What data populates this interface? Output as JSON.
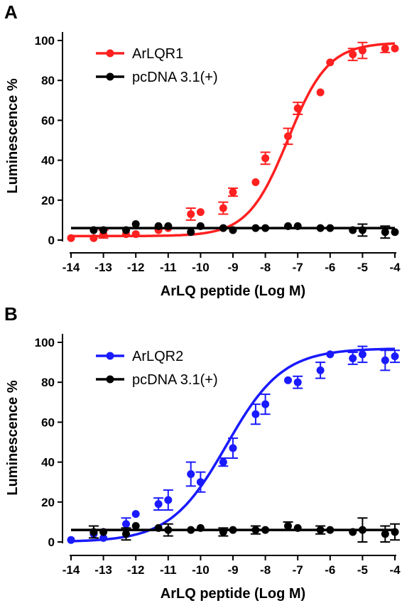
{
  "chart_data": [
    {
      "type": "scatter",
      "panel_label": "A",
      "xlabel": "ArLQ peptide (Log M)",
      "ylabel": "Luminescence %",
      "xlim": [
        -14,
        -4
      ],
      "ylim": [
        0,
        100
      ],
      "x_ticks": [
        "-14",
        "-13",
        "-12",
        "-11",
        "-10",
        "-9",
        "-8",
        "-7",
        "-6",
        "-5",
        "-4"
      ],
      "y_ticks": [
        "0",
        "20",
        "40",
        "60",
        "80",
        "100"
      ],
      "legend_position": "top-left",
      "series": [
        {
          "name": "ArLQR1",
          "color": "#ff2020",
          "fit": {
            "bottom": 2,
            "top": 99,
            "logEC50": -7.3,
            "hill": 0.7
          },
          "points": [
            {
              "x": -14.0,
              "y": 1,
              "err": 0
            },
            {
              "x": -13.3,
              "y": 1,
              "err": 0
            },
            {
              "x": -13.0,
              "y": 3,
              "err": 2
            },
            {
              "x": -12.3,
              "y": 3,
              "err": 0
            },
            {
              "x": -12.0,
              "y": 3,
              "err": 0
            },
            {
              "x": -11.3,
              "y": 5,
              "err": 0
            },
            {
              "x": -11.0,
              "y": 6,
              "err": 0
            },
            {
              "x": -10.3,
              "y": 13,
              "err": 3
            },
            {
              "x": -10.0,
              "y": 14,
              "err": 0
            },
            {
              "x": -9.3,
              "y": 16,
              "err": 3
            },
            {
              "x": -9.0,
              "y": 24,
              "err": 2
            },
            {
              "x": -8.3,
              "y": 29,
              "err": 0
            },
            {
              "x": -8.0,
              "y": 41,
              "err": 3
            },
            {
              "x": -7.3,
              "y": 52,
              "err": 4
            },
            {
              "x": -7.0,
              "y": 66,
              "err": 3
            },
            {
              "x": -6.3,
              "y": 74,
              "err": 0
            },
            {
              "x": -6.0,
              "y": 89,
              "err": 0
            },
            {
              "x": -5.3,
              "y": 93,
              "err": 3
            },
            {
              "x": -5.0,
              "y": 95,
              "err": 4
            },
            {
              "x": -4.3,
              "y": 96,
              "err": 2
            },
            {
              "x": -4.0,
              "y": 96,
              "err": 0
            }
          ]
        },
        {
          "name": "pcDNA 3.1(+)",
          "color": "#000000",
          "fit": {
            "bottom": 6,
            "top": 6,
            "logEC50": -7,
            "hill": 1
          },
          "points": [
            {
              "x": -13.3,
              "y": 5,
              "err": 0
            },
            {
              "x": -13.0,
              "y": 5,
              "err": 0
            },
            {
              "x": -12.3,
              "y": 5,
              "err": 0
            },
            {
              "x": -12.0,
              "y": 8,
              "err": 0
            },
            {
              "x": -11.3,
              "y": 7,
              "err": 0
            },
            {
              "x": -11.0,
              "y": 7,
              "err": 0
            },
            {
              "x": -10.3,
              "y": 4,
              "err": 0
            },
            {
              "x": -10.0,
              "y": 7,
              "err": 0
            },
            {
              "x": -9.3,
              "y": 6,
              "err": 0
            },
            {
              "x": -9.0,
              "y": 5,
              "err": 0
            },
            {
              "x": -8.3,
              "y": 6,
              "err": 0
            },
            {
              "x": -8.0,
              "y": 6,
              "err": 0
            },
            {
              "x": -7.3,
              "y": 7,
              "err": 0
            },
            {
              "x": -7.0,
              "y": 7,
              "err": 0
            },
            {
              "x": -6.3,
              "y": 6,
              "err": 0
            },
            {
              "x": -6.0,
              "y": 6,
              "err": 0
            },
            {
              "x": -5.3,
              "y": 5,
              "err": 0
            },
            {
              "x": -5.0,
              "y": 5,
              "err": 3
            },
            {
              "x": -4.3,
              "y": 4,
              "err": 3
            },
            {
              "x": -4.0,
              "y": 4,
              "err": 0
            }
          ]
        }
      ]
    },
    {
      "type": "scatter",
      "panel_label": "B",
      "xlabel": "ArLQ peptide (Log M)",
      "ylabel": "Luminescence %",
      "xlim": [
        -14,
        -4
      ],
      "ylim": [
        0,
        100
      ],
      "x_ticks": [
        "-14",
        "-13",
        "-12",
        "-11",
        "-10",
        "-9",
        "-8",
        "-7",
        "-6",
        "-5",
        "-4"
      ],
      "y_ticks": [
        "0",
        "20",
        "40",
        "60",
        "80",
        "100"
      ],
      "legend_position": "top-left",
      "series": [
        {
          "name": "ArLQR2",
          "color": "#1a1aff",
          "fit": {
            "bottom": 0,
            "top": 97,
            "logEC50": -9.2,
            "hill": 0.5
          },
          "points": [
            {
              "x": -14.0,
              "y": 1,
              "err": 0
            },
            {
              "x": -13.3,
              "y": 4,
              "err": 0
            },
            {
              "x": -13.0,
              "y": 2,
              "err": 0
            },
            {
              "x": -12.3,
              "y": 9,
              "err": 3
            },
            {
              "x": -12.0,
              "y": 14,
              "err": 0
            },
            {
              "x": -11.3,
              "y": 19,
              "err": 3
            },
            {
              "x": -11.0,
              "y": 21,
              "err": 5
            },
            {
              "x": -10.3,
              "y": 34,
              "err": 6
            },
            {
              "x": -10.0,
              "y": 30,
              "err": 5
            },
            {
              "x": -9.3,
              "y": 40,
              "err": 2
            },
            {
              "x": -9.0,
              "y": 47,
              "err": 5
            },
            {
              "x": -8.3,
              "y": 64,
              "err": 5
            },
            {
              "x": -8.0,
              "y": 69,
              "err": 5
            },
            {
              "x": -7.3,
              "y": 81,
              "err": 0
            },
            {
              "x": -7.0,
              "y": 80,
              "err": 3
            },
            {
              "x": -6.3,
              "y": 86,
              "err": 4
            },
            {
              "x": -6.0,
              "y": 94,
              "err": 0
            },
            {
              "x": -5.3,
              "y": 92,
              "err": 3
            },
            {
              "x": -5.0,
              "y": 94,
              "err": 4
            },
            {
              "x": -4.3,
              "y": 91,
              "err": 5
            },
            {
              "x": -4.0,
              "y": 93,
              "err": 3
            }
          ]
        },
        {
          "name": "pcDNA 3.1(+)",
          "color": "#000000",
          "fit": {
            "bottom": 6,
            "top": 6,
            "logEC50": -7,
            "hill": 1
          },
          "points": [
            {
              "x": -13.3,
              "y": 5,
              "err": 3
            },
            {
              "x": -13.0,
              "y": 5,
              "err": 0
            },
            {
              "x": -12.3,
              "y": 4,
              "err": 3
            },
            {
              "x": -12.0,
              "y": 8,
              "err": 0
            },
            {
              "x": -11.3,
              "y": 7,
              "err": 0
            },
            {
              "x": -11.0,
              "y": 6,
              "err": 3
            },
            {
              "x": -10.3,
              "y": 6,
              "err": 0
            },
            {
              "x": -10.0,
              "y": 7,
              "err": 0
            },
            {
              "x": -9.3,
              "y": 5,
              "err": 2
            },
            {
              "x": -9.0,
              "y": 6,
              "err": 0
            },
            {
              "x": -8.3,
              "y": 6,
              "err": 2
            },
            {
              "x": -8.0,
              "y": 6,
              "err": 0
            },
            {
              "x": -7.3,
              "y": 8,
              "err": 2
            },
            {
              "x": -7.0,
              "y": 7,
              "err": 0
            },
            {
              "x": -6.3,
              "y": 6,
              "err": 2
            },
            {
              "x": -6.0,
              "y": 6,
              "err": 0
            },
            {
              "x": -5.3,
              "y": 5,
              "err": 0
            },
            {
              "x": -5.0,
              "y": 6,
              "err": 6
            },
            {
              "x": -4.3,
              "y": 4,
              "err": 4
            },
            {
              "x": -4.0,
              "y": 5,
              "err": 4
            }
          ]
        }
      ]
    }
  ]
}
